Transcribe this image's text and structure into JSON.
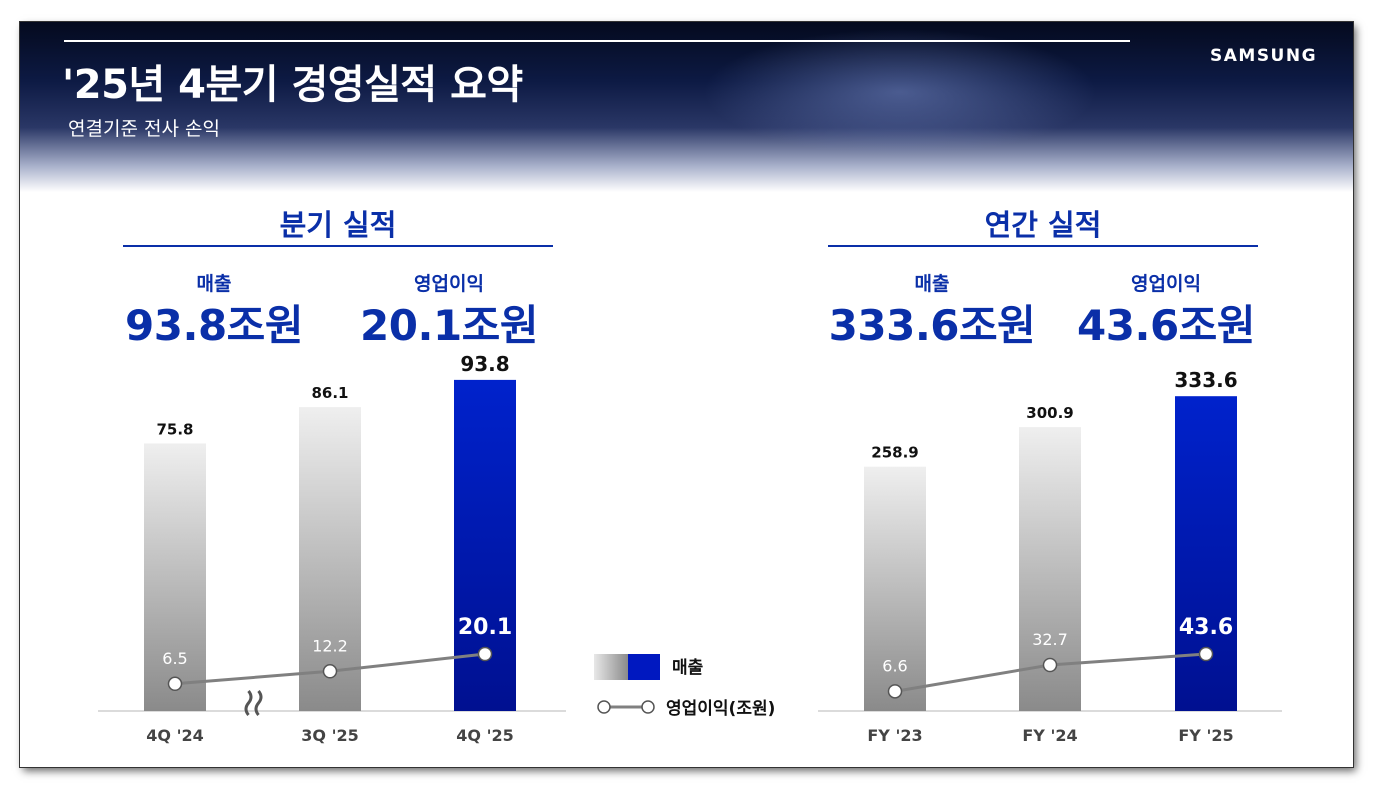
{
  "header": {
    "title": "'25년 4분기 경영실적 요약",
    "subtitle": "연결기준 전사 손익",
    "logo": "SAMSUNG"
  },
  "quarterly": {
    "title": "분기 실적",
    "kpi_revenue_label": "매출",
    "kpi_revenue_value": "93.8조원",
    "kpi_op_label": "영업이익",
    "kpi_op_value": "20.1조원"
  },
  "annual": {
    "title": "연간 실적",
    "kpi_revenue_label": "매출",
    "kpi_revenue_value": "333.6조원",
    "kpi_op_label": "영업이익",
    "kpi_op_value": "43.6조원"
  },
  "legend": {
    "bar_label": "매출",
    "line_label": "영업이익(조원)"
  },
  "colors": {
    "accent": "#0a2fa8",
    "highlight_bar": "#0018c0",
    "grey_bar_top": "#efefef",
    "grey_bar_bottom": "#8a8a8a",
    "line": "#808080"
  },
  "chart_data": [
    {
      "type": "bar",
      "categories": [
        "4Q '24",
        "3Q '25",
        "4Q '25"
      ],
      "series": [
        {
          "name": "매출",
          "values": [
            75.8,
            86.1,
            93.8
          ]
        },
        {
          "name": "영업이익(조원)",
          "type": "line",
          "values": [
            6.5,
            12.2,
            20.1
          ]
        }
      ],
      "highlight_index": 2,
      "axis_break_after_index": 0,
      "ylim": [
        0,
        100
      ]
    },
    {
      "type": "bar",
      "categories": [
        "FY '23",
        "FY '24",
        "FY '25"
      ],
      "series": [
        {
          "name": "매출",
          "values": [
            258.9,
            300.9,
            333.6
          ]
        },
        {
          "name": "영업이익(조원)",
          "type": "line",
          "values": [
            6.6,
            32.7,
            43.6
          ]
        }
      ],
      "highlight_index": 2,
      "ylim": [
        0,
        355
      ]
    }
  ]
}
